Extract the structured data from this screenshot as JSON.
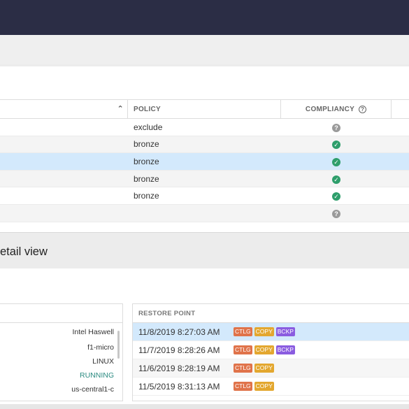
{
  "grid": {
    "columns": {
      "policy": "POLICY",
      "compliancy": "COMPLIANCY",
      "help_glyph": "?",
      "sort_glyph": "⌃"
    },
    "rows": [
      {
        "policy": "exclude",
        "compliancy": "unknown",
        "glyph": "?"
      },
      {
        "policy": "bronze",
        "compliancy": "compliant",
        "glyph": "✓"
      },
      {
        "policy": "bronze",
        "compliancy": "compliant",
        "glyph": "✓",
        "selected": true
      },
      {
        "policy": "bronze",
        "compliancy": "compliant",
        "glyph": "✓"
      },
      {
        "policy": "bronze",
        "compliancy": "compliant",
        "glyph": "✓"
      },
      {
        "policy": "",
        "compliancy": "unknown",
        "glyph": "?"
      }
    ]
  },
  "detail": {
    "title": "etail view",
    "properties": [
      "Intel Haswell",
      "f1-micro",
      "LINUX",
      "RUNNING",
      "us-central1-c"
    ],
    "restore_points": {
      "header": "RESTORE POINT",
      "rows": [
        {
          "time": "11/8/2019 8:27:03 AM",
          "tags": [
            "CTLG",
            "COPY",
            "BCKP"
          ],
          "selected": true
        },
        {
          "time": "11/7/2019 8:28:26 AM",
          "tags": [
            "CTLG",
            "COPY",
            "BCKP"
          ]
        },
        {
          "time": "11/6/2019 8:28:19 AM",
          "tags": [
            "CTLG",
            "COPY"
          ]
        },
        {
          "time": "11/5/2019 8:31:13 AM",
          "tags": [
            "CTLG",
            "COPY"
          ]
        }
      ]
    }
  },
  "colors": {
    "topbar": "#2b2d45",
    "selected_row": "#d3e9fc",
    "compliant": "#2e9e6b",
    "unknown": "#9a9a9a",
    "tag_CTLG": "#e0734a",
    "tag_COPY": "#e3a72f",
    "tag_BCKP": "#8a5ce0",
    "running": "#2a8a80"
  }
}
